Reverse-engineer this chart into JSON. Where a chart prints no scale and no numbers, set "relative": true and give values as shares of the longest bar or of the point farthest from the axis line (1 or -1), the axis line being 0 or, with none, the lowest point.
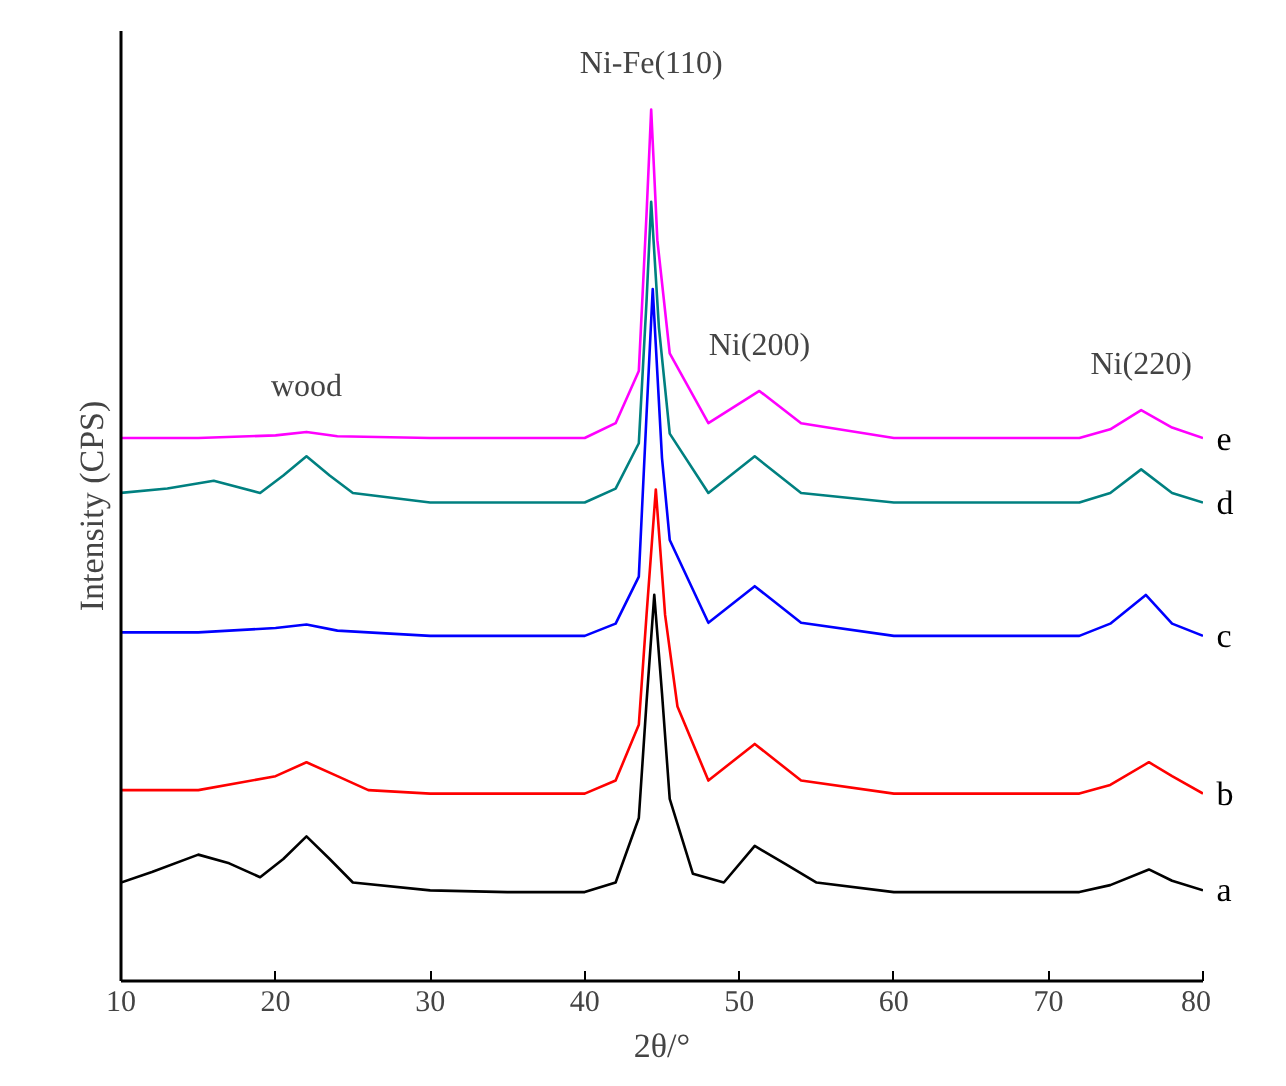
{
  "chart_data": {
    "type": "line",
    "relative": true,
    "xlabel": "2θ/°",
    "ylabel": "Intensity (CPS)",
    "xlim": [
      10,
      80
    ],
    "xticks": [
      10,
      20,
      30,
      40,
      50,
      60,
      70,
      80
    ],
    "tick_labels": "x",
    "grid": false,
    "marker": "none",
    "line_style": "solid",
    "series": [
      {
        "name": "a",
        "color": "#000000",
        "x": [
          10,
          12,
          15,
          17,
          19,
          20.5,
          22,
          23.5,
          25,
          30,
          35,
          40,
          42,
          43.5,
          44,
          44.5,
          45,
          45.5,
          47,
          49,
          51,
          53,
          55,
          60,
          65,
          72,
          74,
          76.5,
          78,
          80
        ],
        "values": [
          0.113,
          0.125,
          0.145,
          0.135,
          0.119,
          0.14,
          0.166,
          0.14,
          0.113,
          0.104,
          0.102,
          0.102,
          0.113,
          0.187,
          0.32,
          0.443,
          0.33,
          0.209,
          0.123,
          0.113,
          0.155,
          0.134,
          0.113,
          0.102,
          0.102,
          0.102,
          0.11,
          0.128,
          0.115,
          0.104
        ]
      },
      {
        "name": "b",
        "color": "#ff0000",
        "x": [
          10,
          15,
          20,
          22,
          24,
          26,
          30,
          35,
          40,
          42,
          43.5,
          44,
          44.6,
          45.2,
          46,
          48,
          51,
          54,
          60,
          65,
          72,
          74,
          76.5,
          78,
          80
        ],
        "values": [
          0.219,
          0.219,
          0.235,
          0.251,
          0.235,
          0.219,
          0.215,
          0.215,
          0.215,
          0.23,
          0.294,
          0.42,
          0.564,
          0.42,
          0.315,
          0.23,
          0.272,
          0.23,
          0.215,
          0.215,
          0.215,
          0.225,
          0.251,
          0.235,
          0.215
        ]
      },
      {
        "name": "c",
        "color": "#0000ff",
        "x": [
          10,
          15,
          20,
          22,
          24,
          30,
          35,
          40,
          42,
          43.5,
          44,
          44.4,
          45,
          45.5,
          48,
          51,
          54,
          60,
          65,
          72,
          74,
          76.3,
          78,
          80
        ],
        "values": [
          0.4,
          0.4,
          0.405,
          0.409,
          0.402,
          0.396,
          0.396,
          0.396,
          0.41,
          0.464,
          0.65,
          0.794,
          0.6,
          0.506,
          0.411,
          0.453,
          0.411,
          0.396,
          0.396,
          0.396,
          0.41,
          0.443,
          0.41,
          0.396
        ]
      },
      {
        "name": "d",
        "color": "#008080",
        "x": [
          10,
          13,
          16,
          19,
          20.5,
          22,
          23.5,
          25,
          30,
          35,
          40,
          42,
          43.5,
          44,
          44.3,
          44.8,
          45.5,
          48,
          51,
          54,
          60,
          65,
          72,
          74,
          76,
          78,
          80
        ],
        "values": [
          0.56,
          0.565,
          0.574,
          0.56,
          0.58,
          0.602,
          0.58,
          0.56,
          0.549,
          0.549,
          0.549,
          0.565,
          0.617,
          0.78,
          0.894,
          0.75,
          0.628,
          0.56,
          0.602,
          0.56,
          0.549,
          0.549,
          0.549,
          0.56,
          0.587,
          0.56,
          0.549
        ]
      },
      {
        "name": "e",
        "color": "#ff00ff",
        "x": [
          10,
          15,
          20,
          22,
          24,
          30,
          35,
          40,
          42,
          43.5,
          44,
          44.3,
          44.7,
          45.5,
          48,
          51.3,
          54,
          60,
          65,
          72,
          74,
          76,
          78,
          80
        ],
        "values": [
          0.623,
          0.623,
          0.626,
          0.63,
          0.625,
          0.623,
          0.623,
          0.623,
          0.64,
          0.7,
          0.88,
          1.0,
          0.85,
          0.72,
          0.64,
          0.677,
          0.64,
          0.623,
          0.623,
          0.623,
          0.633,
          0.655,
          0.635,
          0.623
        ]
      }
    ],
    "annotations": [
      {
        "text": "wood",
        "x": 22,
        "y": 0.63
      },
      {
        "text": "Ni-Fe(110)",
        "x": 44.3,
        "y": 1.0
      },
      {
        "text": "Ni(200)",
        "x": 51.3,
        "y": 0.677
      },
      {
        "text": "Ni(220)",
        "x": 76,
        "y": 0.655
      }
    ]
  }
}
